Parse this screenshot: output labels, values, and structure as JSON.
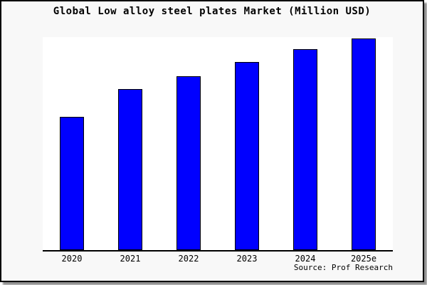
{
  "figure": {
    "title": "Global Low alloy steel plates Market (Million USD)",
    "source_text": "Source: Prof Research"
  },
  "chart_data": {
    "type": "bar",
    "title": "Global Low alloy steel plates Market (Million USD)",
    "categories": [
      "2020",
      "2021",
      "2022",
      "2023",
      "2024",
      "2025e"
    ],
    "values": [
      63,
      76,
      82,
      89,
      95,
      100
    ],
    "value_scale": "relative index, 2025e = 100 (no numeric y-axis shown in figure)",
    "xlabel": "",
    "ylabel": "",
    "ylim": [
      0,
      100
    ],
    "y_axis_visible": false,
    "grid": false,
    "legend": null,
    "annotations": [
      "Source: Prof Research"
    ]
  },
  "colors": {
    "bar_fill": "#0000ff",
    "bar_border": "#000000",
    "figure_background": "#f8f8f8",
    "plot_background": "#ffffff",
    "axis": "#000000",
    "text": "#000000"
  }
}
